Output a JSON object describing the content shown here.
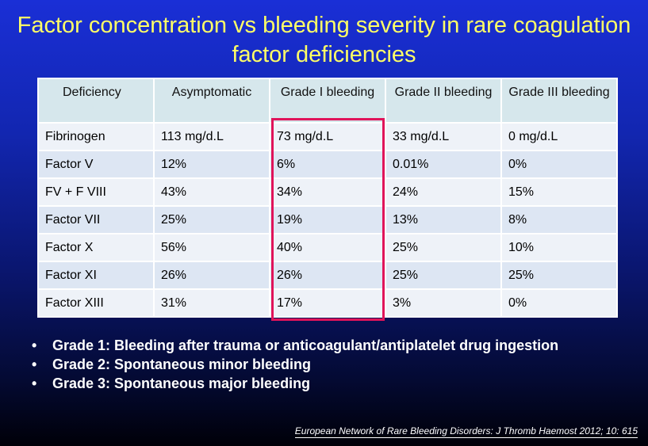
{
  "title": "Factor concentration vs bleeding severity in rare coagulation factor deficiencies",
  "table": {
    "headers": [
      "Deficiency",
      "Asymptomatic",
      "Grade I bleeding",
      "Grade II bleeding",
      "Grade III bleeding"
    ],
    "rows": [
      [
        "Fibrinogen",
        "113 mg/d.L",
        "73 mg/d.L",
        "33 mg/d.L",
        "0 mg/d.L"
      ],
      [
        "Factor V",
        "12%",
        "6%",
        "0.01%",
        "0%"
      ],
      [
        "FV + F VIII",
        "43%",
        "34%",
        "24%",
        "15%"
      ],
      [
        "Factor VII",
        "25%",
        "19%",
        "13%",
        "8%"
      ],
      [
        "Factor X",
        "56%",
        "40%",
        "25%",
        "10%"
      ],
      [
        "Factor XI",
        "26%",
        "26%",
        "25%",
        "25%"
      ],
      [
        "Factor XIII",
        "31%",
        "17%",
        "3%",
        "0%"
      ]
    ]
  },
  "notes": [
    "Grade 1: Bleeding after trauma or anticoagulant/antiplatelet drug ingestion",
    "Grade 2: Spontaneous minor bleeding",
    "Grade 3: Spontaneous major bleeding"
  ],
  "bullet_char": "•",
  "citation": "European Network of Rare Bleeding Disorders: J Thromb Haemost 2012; 10: 615",
  "colors": {
    "title": "#ffff66",
    "highlight_border": "#e0145a",
    "header_bg": "#d6e7ec",
    "background_top": "#1a2fd6",
    "background_bottom": "#000008"
  }
}
